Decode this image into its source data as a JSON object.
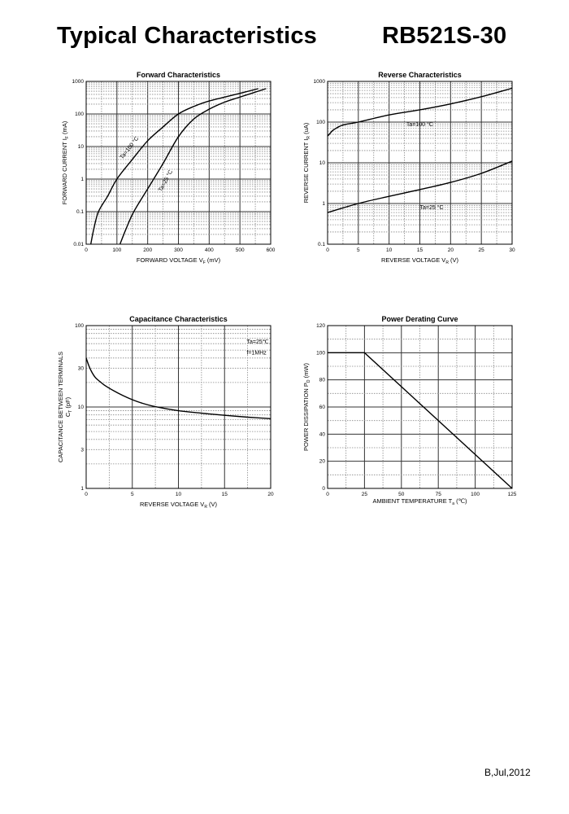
{
  "header": {
    "title": "Typical Characteristics",
    "part_number": "RB521S-30"
  },
  "footer": {
    "revision": "B,Jul,2012"
  },
  "chart_data": [
    {
      "type": "line",
      "title": "Forward    Characteristics",
      "xlabel": {
        "text": "FORWARD VOLTAGE",
        "symbol": "V",
        "sub": "F",
        "unit": "(mV)"
      },
      "ylabel": {
        "text": "FORWARD CURRENT",
        "symbol": "I",
        "sub": "F",
        "unit": "(mA)"
      },
      "xscale": "linear",
      "yscale": "log",
      "xlim": [
        0,
        600
      ],
      "ylim": [
        0.01,
        1000
      ],
      "xticks": [
        0,
        100,
        200,
        300,
        400,
        500,
        600
      ],
      "yticks": [
        0.01,
        0.1,
        1,
        10,
        100,
        1000
      ],
      "ytick_labels": [
        "0.01",
        "0.1",
        "1",
        "10",
        "100",
        "1000"
      ],
      "x_minor_step": 50,
      "x_major_step": 100,
      "grid": true,
      "series": [
        {
          "name": "Ta=100°C",
          "x": [
            15,
            25,
            40,
            70,
            100,
            150,
            200,
            250,
            300,
            350,
            400,
            500,
            560
          ],
          "y": [
            0.01,
            0.03,
            0.1,
            0.3,
            1,
            4,
            15,
            40,
            100,
            170,
            250,
            430,
            600
          ]
        },
        {
          "name": "Ta=25°C",
          "x": [
            110,
            130,
            155,
            200,
            250,
            300,
            350,
            400,
            450,
            500,
            585
          ],
          "y": [
            0.01,
            0.03,
            0.1,
            0.5,
            3,
            20,
            70,
            140,
            230,
            330,
            600
          ]
        }
      ],
      "annotations": [
        {
          "text": "Ta=100 °C",
          "x": 118,
          "y": 4,
          "angle": -52
        },
        {
          "text": "Ta=25 °C",
          "x": 245,
          "y": 0.4,
          "angle": -62
        }
      ]
    },
    {
      "type": "line",
      "title": "Reverse    Characteristics",
      "xlabel": {
        "text": "REVERSE VOLTAGE",
        "symbol": "V",
        "sub": "R",
        "unit": "(V)"
      },
      "ylabel": {
        "text": "REVERSE CURRENT",
        "symbol": "I",
        "sub": "R",
        "unit": "(uA)"
      },
      "xscale": "linear",
      "yscale": "log",
      "xlim": [
        0,
        30
      ],
      "ylim": [
        0.1,
        1000
      ],
      "xticks": [
        0,
        5,
        10,
        15,
        20,
        25,
        30
      ],
      "yticks": [
        0.1,
        1,
        10,
        100,
        1000
      ],
      "ytick_labels": [
        "0.1",
        "1",
        "10",
        "100",
        "1000"
      ],
      "x_minor_step": 2.5,
      "x_major_step": 5,
      "grid": true,
      "series": [
        {
          "name": "Ta=100°C",
          "x": [
            0,
            0.5,
            1,
            2.5,
            5,
            10,
            15,
            20,
            25,
            30
          ],
          "y": [
            45,
            55,
            65,
            85,
            100,
            150,
            200,
            280,
            420,
            680
          ]
        },
        {
          "name": "Ta=25°C",
          "x": [
            0,
            5,
            10,
            15,
            20,
            25,
            30
          ],
          "y": [
            0.6,
            1,
            1.5,
            2.2,
            3.3,
            5.5,
            11
          ]
        }
      ],
      "annotations": [
        {
          "text": "Ta=100 °C",
          "x": 12.8,
          "y": 80,
          "angle": 0
        },
        {
          "text": "Ta=25 °C",
          "x": 15,
          "y": 0.72,
          "angle": 0
        }
      ]
    },
    {
      "type": "line",
      "title": "Capacitance Characteristics",
      "xlabel": {
        "text": "REVERSE VOLTAGE",
        "symbol": "V",
        "sub": "R",
        "unit": "(V)"
      },
      "ylabel": {
        "text": "CAPACITANCE BETWEEN TERMINALS",
        "line2": "(pF)",
        "symbol": "C",
        "sub": "T"
      },
      "xscale": "linear",
      "yscale": "log",
      "xlim": [
        0,
        20
      ],
      "ylim": [
        1,
        100
      ],
      "xticks": [
        0,
        5,
        10,
        15,
        20
      ],
      "yticks": [
        1,
        3,
        10,
        30,
        100
      ],
      "ytick_labels": [
        "1",
        "3",
        "10",
        "30",
        "100"
      ],
      "x_minor_step": 2.5,
      "x_major_step": 5,
      "grid": true,
      "series": [
        {
          "name": "Ct",
          "x": [
            0,
            0.3,
            0.6,
            1,
            1.5,
            2,
            3,
            4,
            5,
            6,
            7.5,
            10,
            12.5,
            15,
            17.5,
            20
          ],
          "y": [
            40,
            32,
            27,
            23,
            20.5,
            18.5,
            15.8,
            13.8,
            12.3,
            11.2,
            10.1,
            9.0,
            8.4,
            7.9,
            7.5,
            7.2
          ]
        }
      ],
      "annotations": [
        {
          "text": "Ta=25℃",
          "x": 17.4,
          "y": 60,
          "angle": 0
        },
        {
          "text": "f=1MHz",
          "x": 17.4,
          "y": 44,
          "angle": 0
        }
      ]
    },
    {
      "type": "line",
      "title": "Power Derating Curve",
      "xlabel": {
        "text": "AMBIENT TEMPERATURE",
        "symbol": "T",
        "sub": "a",
        "unit": "(℃)"
      },
      "ylabel": {
        "text": "POWER DISSIPATION",
        "symbol": "P",
        "sub": "D",
        "unit": "(mW)"
      },
      "xscale": "linear",
      "yscale": "linear",
      "xlim": [
        0,
        125
      ],
      "ylim": [
        0,
        120
      ],
      "xticks": [
        0,
        25,
        50,
        75,
        100,
        125
      ],
      "yticks": [
        0,
        20,
        40,
        60,
        80,
        100,
        120
      ],
      "ytick_labels": [
        "0",
        "20",
        "40",
        "60",
        "80",
        "100",
        "120"
      ],
      "x_minor_step": 12.5,
      "x_major_step": 25,
      "y_minor_step": 10,
      "y_major_step": 20,
      "grid": true,
      "series": [
        {
          "name": "PD",
          "x": [
            0,
            25,
            125
          ],
          "y": [
            100,
            100,
            0
          ]
        }
      ],
      "annotations": []
    }
  ]
}
